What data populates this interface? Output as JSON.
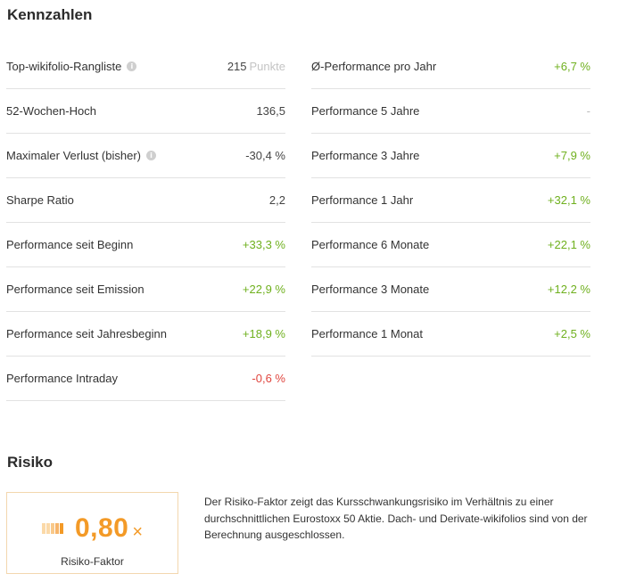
{
  "kennzahlen": {
    "title": "Kennzahlen",
    "left": [
      {
        "label": "Top-wikifolio-Rangliste",
        "info": true,
        "value": "215",
        "unit": "Punkte",
        "tone": "default"
      },
      {
        "label": "52-Wochen-Hoch",
        "info": false,
        "value": "136,5",
        "tone": "default"
      },
      {
        "label": "Maximaler Verlust (bisher)",
        "info": true,
        "value": "-30,4 %",
        "tone": "default"
      },
      {
        "label": "Sharpe Ratio",
        "info": false,
        "value": "2,2",
        "tone": "default"
      },
      {
        "label": "Performance seit Beginn",
        "info": false,
        "value": "+33,3 %",
        "tone": "pos"
      },
      {
        "label": "Performance seit Emission",
        "info": false,
        "value": "+22,9 %",
        "tone": "pos"
      },
      {
        "label": "Performance seit Jahresbeginn",
        "info": false,
        "value": "+18,9 %",
        "tone": "pos"
      },
      {
        "label": "Performance Intraday",
        "info": false,
        "value": "-0,6 %",
        "tone": "neg"
      }
    ],
    "right": [
      {
        "label": "Ø-Performance pro Jahr",
        "value": "+6,7 %",
        "tone": "pos"
      },
      {
        "label": "Performance 5 Jahre",
        "value": "-",
        "tone": "neutral"
      },
      {
        "label": "Performance 3 Jahre",
        "value": "+7,9 %",
        "tone": "pos"
      },
      {
        "label": "Performance 1 Jahr",
        "value": "+32,1 %",
        "tone": "pos"
      },
      {
        "label": "Performance 6 Monate",
        "value": "+22,1 %",
        "tone": "pos"
      },
      {
        "label": "Performance 3 Monate",
        "value": "+12,2 %",
        "tone": "pos"
      },
      {
        "label": "Performance 1 Monat",
        "value": "+2,5 %",
        "tone": "pos"
      }
    ],
    "info_icon": "info-icon"
  },
  "risiko": {
    "title": "Risiko",
    "value": "0,80",
    "multiplier": "×",
    "label": "Risiko-Faktor",
    "description": "Der Risiko-Faktor zeigt das Kursschwankungsrisiko im Verhältnis zu einer durchschnittlichen Eurostoxx 50 Aktie. Dach- und Derivate-wikifolios sind von der Berechnung ausgeschlossen.",
    "bar_colors": [
      "#fbd9a8",
      "#fbd9a8",
      "#f9c98a",
      "#f7b56a",
      "#f39a27"
    ]
  },
  "colors": {
    "positive": "#6fb01e",
    "negative": "#e0453e",
    "accent": "#f39a27"
  }
}
